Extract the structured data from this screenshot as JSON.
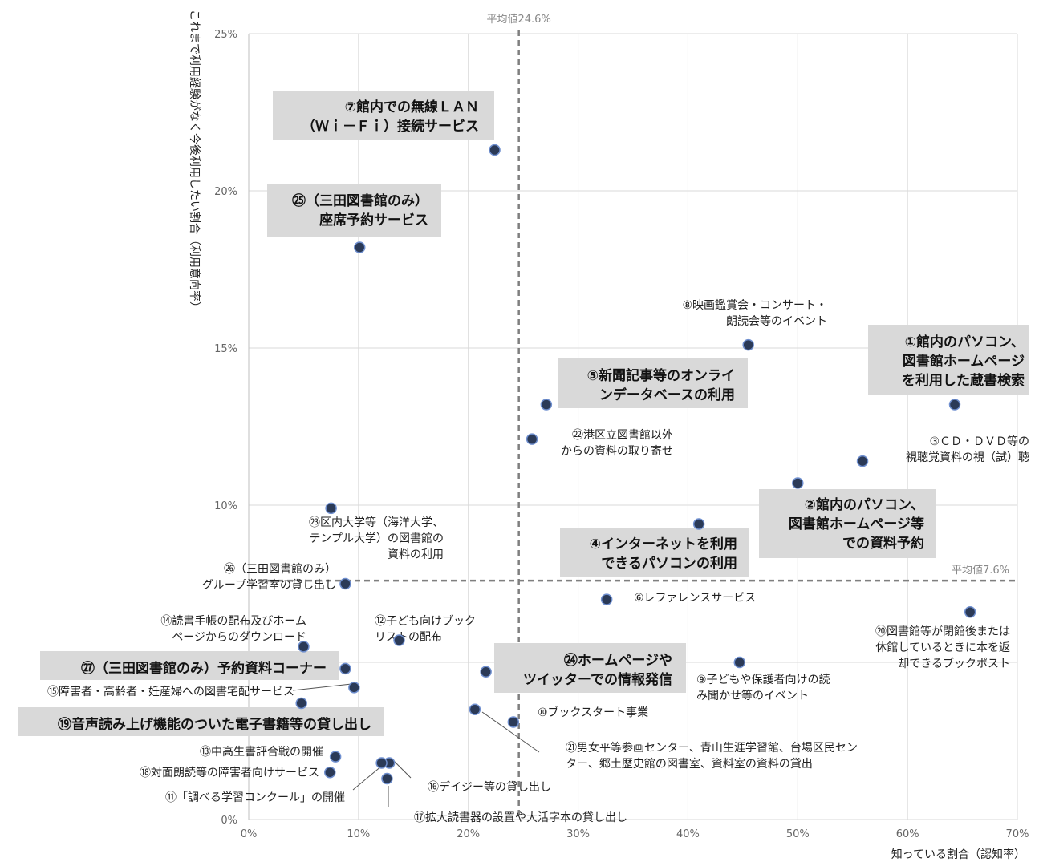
{
  "chart_data": {
    "type": "scatter",
    "xlabel": "知っている割合（認知率）",
    "ylabel": "これまで利用経験がなく今後利用したい割合（利用意向率）",
    "xlim": [
      0,
      70
    ],
    "ylim": [
      0,
      25
    ],
    "x_ticks": [
      "0%",
      "10%",
      "20%",
      "30%",
      "40%",
      "50%",
      "60%",
      "70%"
    ],
    "y_ticks": [
      "0%",
      "5%",
      "10%",
      "15%",
      "20%",
      "25%"
    ],
    "grid": true,
    "marker_color": "#2b3a57",
    "avg_x": {
      "value": 24.6,
      "label": "平均値24.6%"
    },
    "avg_y": {
      "value": 7.6,
      "label": "平均値7.6%"
    },
    "points": [
      {
        "x": 64.3,
        "y": 13.2,
        "highlight": true,
        "label": [
          "①館内のパソコン、",
          "図書館ホームページ",
          "を利用した蔵書検索"
        ]
      },
      {
        "x": 50.0,
        "y": 10.7,
        "highlight": true,
        "label": [
          "②館内のパソコン、",
          "図書館ホームページ等",
          "での資料予約"
        ]
      },
      {
        "x": 55.9,
        "y": 11.4,
        "highlight": false,
        "label": [
          "③ＣＤ・ＤＶＤ等の",
          "視聴覚資料の視（試）聴"
        ]
      },
      {
        "x": 41.0,
        "y": 9.4,
        "highlight": true,
        "label": [
          "④インターネットを利用",
          "できるパソコンの利用"
        ]
      },
      {
        "x": 27.1,
        "y": 13.2,
        "highlight": true,
        "label": [
          "⑤新聞記事等のオンライ",
          "ンデータベースの利用"
        ]
      },
      {
        "x": 32.6,
        "y": 7.0,
        "highlight": false,
        "label": [
          "⑥レファレンスサービス"
        ]
      },
      {
        "x": 22.4,
        "y": 21.3,
        "highlight": true,
        "label": [
          "⑦館内での無線ＬＡＮ",
          "（Ｗｉ－Ｆｉ）接続サービス"
        ]
      },
      {
        "x": 45.5,
        "y": 15.1,
        "highlight": false,
        "label": [
          "⑧映画鑑賞会・コンサート・",
          "朗読会等のイベント"
        ]
      },
      {
        "x": 44.7,
        "y": 5.0,
        "highlight": false,
        "label": [
          "⑨子どもや保護者向けの読",
          "み聞かせ等のイベント"
        ]
      },
      {
        "x": 24.1,
        "y": 3.1,
        "highlight": false,
        "label": [
          "⑩ブックスタート事業"
        ]
      },
      {
        "x": 12.6,
        "y": 1.3,
        "highlight": false,
        "label": [
          "⑪「調べる学習コンクール」の開催"
        ]
      },
      {
        "x": 13.7,
        "y": 5.7,
        "highlight": false,
        "label": [
          "⑫子ども向けブック",
          "リストの配布"
        ]
      },
      {
        "x": 7.9,
        "y": 2.0,
        "highlight": false,
        "label": [
          "⑬中高生書評合戦の開催"
        ]
      },
      {
        "x": 5.0,
        "y": 5.5,
        "highlight": false,
        "label": [
          "⑭読書手帳の配布及びホーム",
          "ページからのダウンロード"
        ]
      },
      {
        "x": 9.6,
        "y": 4.2,
        "highlight": false,
        "label": [
          "⑮障害者・高齢者・妊産婦への図書宅配サービス"
        ]
      },
      {
        "x": 12.8,
        "y": 1.8,
        "highlight": false,
        "label": [
          "⑯デイジー等の貸し出し"
        ]
      },
      {
        "x": 12.1,
        "y": 1.8,
        "highlight": false,
        "label": [
          "⑰拡大読書器の設置や大活字本の貸し出し"
        ]
      },
      {
        "x": 7.4,
        "y": 1.5,
        "highlight": false,
        "label": [
          "⑱対面朗読等の障害者向けサービス"
        ]
      },
      {
        "x": 4.8,
        "y": 3.7,
        "highlight": true,
        "label": [
          "⑲音声読み上げ機能のついた電子書籍等の貸し出し"
        ]
      },
      {
        "x": 65.7,
        "y": 6.6,
        "highlight": false,
        "label": [
          "⑳図書館等が閉館後または",
          "休館しているときに本を返",
          "却できるブックポスト"
        ]
      },
      {
        "x": 20.6,
        "y": 3.5,
        "highlight": false,
        "label": [
          "㉑男女平等参画センター、青山生涯学習館、台場区民セン",
          "ター、郷土歴史館の図書室、資料室の資料の貸出"
        ]
      },
      {
        "x": 25.8,
        "y": 12.1,
        "highlight": false,
        "label": [
          "㉒港区立図書館以外",
          "からの資料の取り寄せ"
        ]
      },
      {
        "x": 7.5,
        "y": 9.9,
        "highlight": false,
        "label": [
          "㉓区内大学等（海洋大学、",
          "テンプル大学）の図書館の",
          "資料の利用"
        ]
      },
      {
        "x": 21.6,
        "y": 4.7,
        "highlight": true,
        "label": [
          "㉔ホームページや",
          "ツイッターでの情報発信"
        ]
      },
      {
        "x": 10.1,
        "y": 18.2,
        "highlight": true,
        "label": [
          "㉕（三田図書館のみ）",
          "座席予約サービス"
        ]
      },
      {
        "x": 8.8,
        "y": 7.5,
        "highlight": false,
        "label": [
          "㉖（三田図書館のみ）",
          "グループ学習室の貸し出し"
        ]
      },
      {
        "x": 8.8,
        "y": 4.8,
        "highlight": true,
        "label": [
          "㉗（三田図書館のみ）予約資料コーナー"
        ]
      }
    ]
  }
}
